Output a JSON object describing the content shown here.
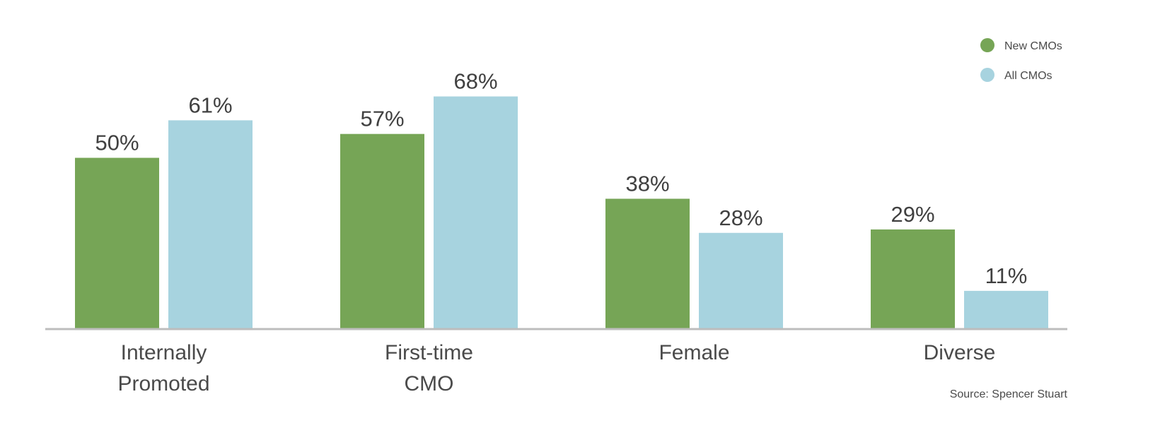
{
  "chart_data": {
    "type": "bar",
    "categories": [
      [
        "Internally",
        "Promoted"
      ],
      [
        "First-time",
        "CMO"
      ],
      [
        "Female"
      ],
      [
        "Diverse"
      ]
    ],
    "series": [
      {
        "name": "New CMOs",
        "color": "#76a556",
        "values": [
          50,
          57,
          38,
          29
        ],
        "labels": [
          "50%",
          "57%",
          "38%",
          "29%"
        ]
      },
      {
        "name": "All CMOs",
        "color": "#a7d3df",
        "values": [
          61,
          68,
          28,
          11
        ],
        "labels": [
          "61%",
          "68%",
          "28%",
          "11%"
        ]
      }
    ],
    "ylim": [
      0,
      100
    ],
    "grid": false,
    "legend_position": "top-right",
    "axis_color": "#bdbdbd"
  },
  "source": "Source: Spencer Stuart"
}
